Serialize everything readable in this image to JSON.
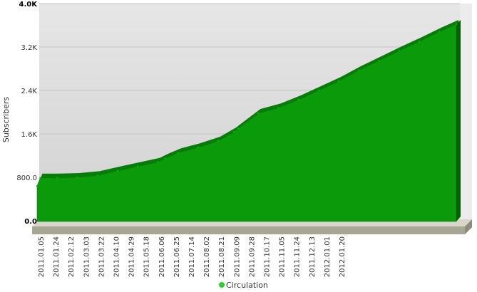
{
  "chart_data": {
    "type": "area",
    "title": "",
    "xlabel": "",
    "ylabel": "Subscribers",
    "ylim": [
      0,
      4000
    ],
    "y_ticks": [
      {
        "value": 0,
        "label": "0.0"
      },
      {
        "value": 800,
        "label": "800.0"
      },
      {
        "value": 1600,
        "label": "1.6K"
      },
      {
        "value": 2400,
        "label": "2.4K"
      },
      {
        "value": 3200,
        "label": "3.2K"
      },
      {
        "value": 4000,
        "label": "4.0K"
      }
    ],
    "x_tick_labels": [
      "2011.01.05",
      "2011.01.24",
      "2011.02.12",
      "2011.03.03",
      "2011.03.22",
      "2011.04.10",
      "2011.04.29",
      "2011.05.18",
      "2011.06.06",
      "2011.06.25",
      "2011.07.14",
      "2011.08.02",
      "2011.08.21",
      "2011.09.09",
      "2011.09.28",
      "2011.10.17",
      "2011.11.05",
      "2011.11.24",
      "2011.12.13",
      "2012.01.01",
      "2012.01.20"
    ],
    "grid": true,
    "legend_position": "bottom",
    "series": [
      {
        "name": "Circulation",
        "color": "#0a9a0a",
        "points": [
          {
            "x": "2011.01.05",
            "y": 640
          },
          {
            "x": "2011.01.08",
            "y": 790
          },
          {
            "x": "2011.01.24",
            "y": 790
          },
          {
            "x": "2011.02.12",
            "y": 800
          },
          {
            "x": "2011.03.03",
            "y": 835
          },
          {
            "x": "2011.03.22",
            "y": 920
          },
          {
            "x": "2011.04.10",
            "y": 1000
          },
          {
            "x": "2011.04.29",
            "y": 1080
          },
          {
            "x": "2011.05.06",
            "y": 1150
          },
          {
            "x": "2011.05.18",
            "y": 1250
          },
          {
            "x": "2011.06.06",
            "y": 1350
          },
          {
            "x": "2011.06.25",
            "y": 1470
          },
          {
            "x": "2011.07.10",
            "y": 1640
          },
          {
            "x": "2011.07.14",
            "y": 1700
          },
          {
            "x": "2011.08.02",
            "y": 1980
          },
          {
            "x": "2011.08.21",
            "y": 2080
          },
          {
            "x": "2011.09.09",
            "y": 2230
          },
          {
            "x": "2011.09.28",
            "y": 2400
          },
          {
            "x": "2011.10.17",
            "y": 2570
          },
          {
            "x": "2011.11.05",
            "y": 2770
          },
          {
            "x": "2011.11.24",
            "y": 2950
          },
          {
            "x": "2011.12.13",
            "y": 3130
          },
          {
            "x": "2012.01.01",
            "y": 3300
          },
          {
            "x": "2012.01.20",
            "y": 3480
          },
          {
            "x": "2012.02.05",
            "y": 3620
          }
        ]
      }
    ]
  }
}
